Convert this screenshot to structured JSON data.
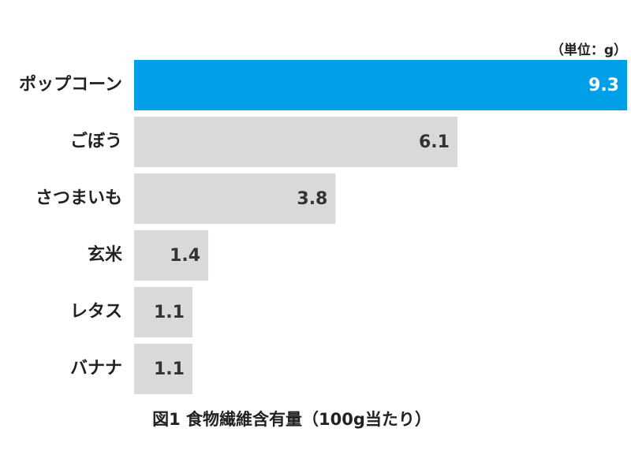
{
  "chart_data": {
    "type": "hbar",
    "title": "図1 食物繊維含有量（100g当たり）",
    "unit_note": "（単位：g）",
    "categories": [
      "ポップコーン",
      "ごぼう",
      "さつまいも",
      "玄米",
      "レタス",
      "バナナ"
    ],
    "values": [
      9.3,
      6.1,
      3.8,
      1.4,
      1.1,
      1.1
    ],
    "colors": [
      "#00a0e9",
      "#d9d9d9",
      "#d9d9d9",
      "#d9d9d9",
      "#d9d9d9",
      "#d9d9d9"
    ],
    "value_label_colors": [
      "#ffffff",
      "#333333",
      "#333333",
      "#333333",
      "#333333",
      "#333333"
    ],
    "xlim": [
      0,
      9.3
    ]
  }
}
